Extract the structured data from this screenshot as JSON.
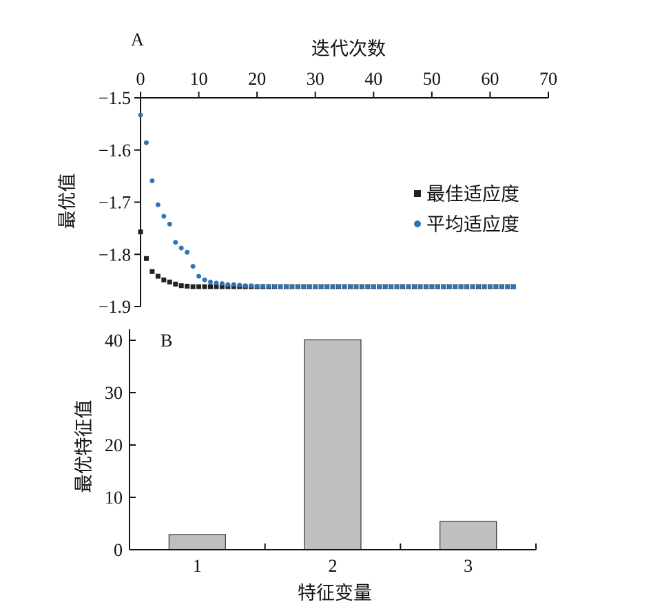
{
  "chart_data": [
    {
      "panel": "A",
      "type": "scatter",
      "xlabel": "迭代次数",
      "ylabel": "最优值",
      "xlim": [
        0,
        70
      ],
      "ylim": [
        -1.9,
        -1.5
      ],
      "x_axis_position": "top",
      "y_axis_inverted": true,
      "xticks": [
        0,
        10,
        20,
        30,
        40,
        50,
        60,
        70
      ],
      "xtick_labels": [
        "0",
        "10",
        "20",
        "30",
        "40",
        "50",
        "60",
        "70"
      ],
      "yticks": [
        -1.5,
        -1.6,
        -1.7,
        -1.8,
        -1.9
      ],
      "ytick_labels": [
        "−1.5",
        "−1.6",
        "−1.7",
        "−1.8",
        "−1.9"
      ],
      "legend": {
        "position": "right",
        "entries": [
          "最佳适应度",
          "平均适应度"
        ]
      },
      "series": [
        {
          "name": "最佳适应度",
          "marker": "square",
          "color": "#222222",
          "x": [
            0,
            1,
            2,
            3,
            4,
            5,
            6,
            7,
            8,
            9,
            10,
            11,
            12,
            13,
            14,
            15,
            16,
            17,
            18,
            19,
            20,
            21,
            22,
            23,
            24,
            25,
            26,
            27,
            28,
            29,
            30,
            31,
            32,
            33,
            34,
            35,
            36,
            37,
            38,
            39,
            40,
            41,
            42,
            43,
            44,
            45,
            46,
            47,
            48,
            49,
            50,
            51,
            52,
            53,
            54,
            55,
            56,
            57,
            58,
            59,
            60,
            61,
            62,
            63,
            64
          ],
          "y": [
            -1.757,
            -1.808,
            -1.833,
            -1.842,
            -1.849,
            -1.853,
            -1.857,
            -1.86,
            -1.861,
            -1.862,
            -1.862,
            -1.862,
            -1.862,
            -1.862,
            -1.862,
            -1.862,
            -1.862,
            -1.862,
            -1.862,
            -1.862,
            -1.862,
            -1.862,
            -1.862,
            -1.862,
            -1.862,
            -1.862,
            -1.862,
            -1.862,
            -1.862,
            -1.862,
            -1.862,
            -1.862,
            -1.862,
            -1.862,
            -1.862,
            -1.862,
            -1.862,
            -1.862,
            -1.862,
            -1.862,
            -1.862,
            -1.862,
            -1.862,
            -1.862,
            -1.862,
            -1.862,
            -1.862,
            -1.862,
            -1.862,
            -1.862,
            -1.862,
            -1.862,
            -1.862,
            -1.862,
            -1.862,
            -1.862,
            -1.862,
            -1.862,
            -1.862,
            -1.862,
            -1.862,
            -1.862,
            -1.862,
            -1.862,
            -1.862
          ]
        },
        {
          "name": "平均适应度",
          "marker": "circle",
          "color": "#2d73b5",
          "x": [
            0,
            1,
            2,
            3,
            4,
            5,
            6,
            7,
            8,
            9,
            10,
            11,
            12,
            13,
            14,
            15,
            16,
            17,
            18,
            19,
            20,
            21,
            22,
            23,
            24,
            25,
            26,
            27,
            28,
            29,
            30,
            31,
            32,
            33,
            34,
            35,
            36,
            37,
            38,
            39,
            40,
            41,
            42,
            43,
            44,
            45,
            46,
            47,
            48,
            49,
            50,
            51,
            52,
            53,
            54,
            55,
            56,
            57,
            58,
            59,
            60,
            61,
            62,
            63,
            64
          ],
          "y": [
            -1.533,
            -1.586,
            -1.659,
            -1.705,
            -1.727,
            -1.742,
            -1.777,
            -1.788,
            -1.796,
            -1.823,
            -1.842,
            -1.849,
            -1.853,
            -1.855,
            -1.856,
            -1.858,
            -1.858,
            -1.859,
            -1.86,
            -1.86,
            -1.861,
            -1.861,
            -1.861,
            -1.862,
            -1.862,
            -1.862,
            -1.862,
            -1.862,
            -1.862,
            -1.862,
            -1.862,
            -1.862,
            -1.862,
            -1.862,
            -1.862,
            -1.862,
            -1.862,
            -1.862,
            -1.862,
            -1.862,
            -1.862,
            -1.862,
            -1.862,
            -1.862,
            -1.862,
            -1.862,
            -1.862,
            -1.862,
            -1.862,
            -1.862,
            -1.862,
            -1.862,
            -1.862,
            -1.862,
            -1.862,
            -1.862,
            -1.862,
            -1.862,
            -1.862,
            -1.862,
            -1.862,
            -1.862,
            -1.862,
            -1.862,
            -1.862
          ]
        }
      ]
    },
    {
      "panel": "B",
      "type": "bar",
      "xlabel": "特征变量",
      "ylabel": "最优特征值",
      "categories": [
        "1",
        "2",
        "3"
      ],
      "values": [
        2.9,
        40.1,
        5.4
      ],
      "ylim": [
        0,
        40
      ],
      "yticks": [
        0,
        10,
        20,
        30,
        40
      ],
      "ytick_labels": [
        "0",
        "10",
        "20",
        "30",
        "40"
      ],
      "bar_color": "#bfbfbf",
      "bar_edge_color": "#333333"
    }
  ]
}
